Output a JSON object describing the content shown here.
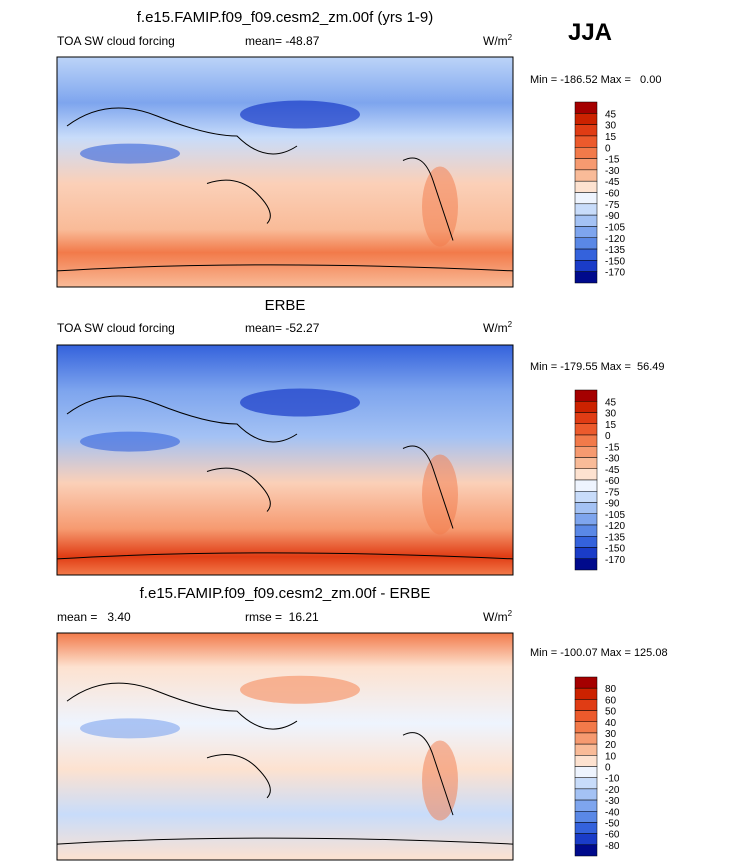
{
  "header": {
    "title": "JJA"
  },
  "panels": [
    {
      "title": "f.e15.FAMIP.f09_f09.cesm2_zm.00f (yrs 1-9)",
      "left": "TOA SW cloud forcing",
      "middle": "mean= -48.87",
      "units": "W/m",
      "units_power": "2",
      "range": "Min = -186.52 Max =   0.00",
      "colorbar": {
        "labels": [
          "45",
          "30",
          "15",
          "0",
          "-15",
          "-30",
          "-45",
          "-60",
          "-75",
          "-90",
          "-105",
          "-120",
          "-135",
          "-150",
          "-170"
        ],
        "colors": [
          "#a50000",
          "#cc2200",
          "#e03c14",
          "#ec5a2c",
          "#f27a4a",
          "#f69a70",
          "#f9bb98",
          "#fde2d0",
          "#eef4fe",
          "#c8dcfa",
          "#a4c2f4",
          "#7ea5ee",
          "#5a88e6",
          "#3462dc",
          "#1a3cc8",
          "#000a8c"
        ]
      }
    },
    {
      "title": "ERBE",
      "left": "TOA SW cloud forcing",
      "middle": "mean= -52.27",
      "units": "W/m",
      "units_power": "2",
      "range": "Min = -179.55 Max =  56.49",
      "colorbar": {
        "labels": [
          "45",
          "30",
          "15",
          "0",
          "-15",
          "-30",
          "-45",
          "-60",
          "-75",
          "-90",
          "-105",
          "-120",
          "-135",
          "-150",
          "-170"
        ],
        "colors": [
          "#a50000",
          "#cc2200",
          "#e03c14",
          "#ec5a2c",
          "#f27a4a",
          "#f69a70",
          "#f9bb98",
          "#fde2d0",
          "#eef4fe",
          "#c8dcfa",
          "#a4c2f4",
          "#7ea5ee",
          "#5a88e6",
          "#3462dc",
          "#1a3cc8",
          "#000a8c"
        ]
      }
    },
    {
      "title": "f.e15.FAMIP.f09_f09.cesm2_zm.00f - ERBE",
      "left": "mean =   3.40",
      "middle": "rmse =  16.21",
      "units": "W/m",
      "units_power": "2",
      "range": "Min = -100.07 Max = 125.08",
      "colorbar": {
        "labels": [
          "80",
          "60",
          "50",
          "40",
          "30",
          "20",
          "10",
          "0",
          "-10",
          "-20",
          "-30",
          "-40",
          "-50",
          "-60",
          "-80"
        ],
        "colors": [
          "#a50000",
          "#cc2200",
          "#e03c14",
          "#ec5a2c",
          "#f27a4a",
          "#f69a70",
          "#f9bb98",
          "#fde2d0",
          "#eef4fe",
          "#c8dcfa",
          "#a4c2f4",
          "#7ea5ee",
          "#5a88e6",
          "#3462dc",
          "#1a3cc8",
          "#000a8c"
        ]
      }
    }
  ]
}
